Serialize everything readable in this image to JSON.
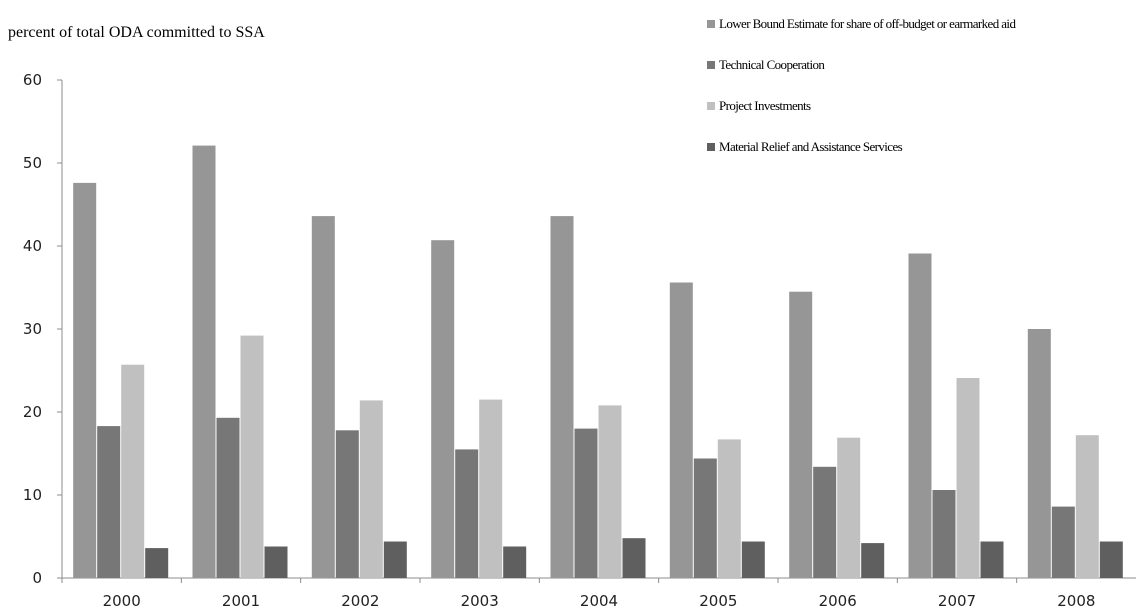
{
  "chart_data": {
    "type": "bar",
    "ylabel": "percent of total ODA committed to SSA",
    "ylim": [
      0,
      60
    ],
    "yticks": [
      0,
      10,
      20,
      30,
      40,
      50,
      60
    ],
    "categories": [
      "2000",
      "2001",
      "2002",
      "2003",
      "2004",
      "2005",
      "2006",
      "2007",
      "2008"
    ],
    "legend_position": "top-right",
    "grid": false,
    "series": [
      {
        "name": "Lower Bound Estimate for share of off-budget or earmarked aid",
        "color": "#969696",
        "values": [
          47.6,
          52.1,
          43.6,
          40.7,
          43.6,
          35.6,
          34.5,
          39.1,
          30.0
        ]
      },
      {
        "name": "Technical Cooperation",
        "color": "#777777",
        "values": [
          18.3,
          19.3,
          17.8,
          15.5,
          18.0,
          14.4,
          13.4,
          10.6,
          8.6
        ]
      },
      {
        "name": "Project Investments",
        "color": "#c0c0c0",
        "values": [
          25.7,
          29.2,
          21.4,
          21.5,
          20.8,
          16.7,
          16.9,
          24.1,
          17.2
        ]
      },
      {
        "name": "Material Relief and Assistance Services",
        "color": "#5f5f5f",
        "values": [
          3.6,
          3.8,
          4.4,
          3.8,
          4.8,
          4.4,
          4.2,
          4.4,
          4.4
        ]
      }
    ]
  }
}
